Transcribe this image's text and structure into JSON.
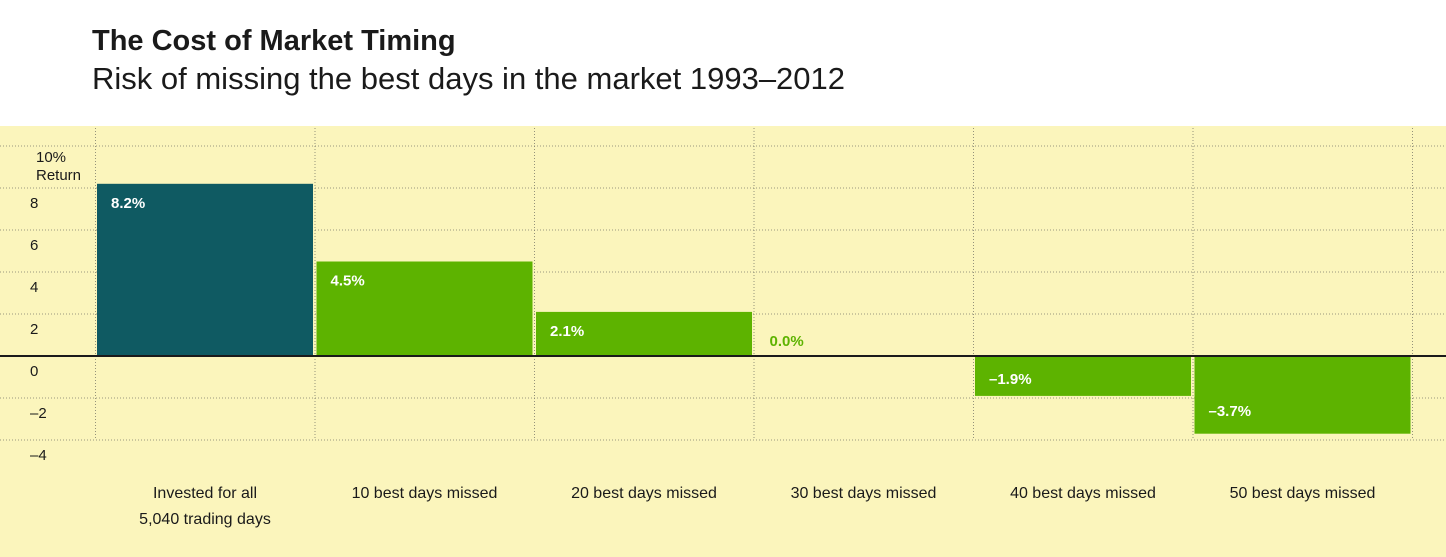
{
  "chart_data": {
    "type": "bar",
    "title": "The Cost of Market Timing",
    "subtitle": "Risk of missing the best days in the market 1993–2012",
    "ylabel": "Return",
    "ylim": [
      -4,
      10
    ],
    "y_ticks": [
      {
        "value": 10,
        "label": "10%"
      },
      {
        "value": 8,
        "label": "8"
      },
      {
        "value": 6,
        "label": "6"
      },
      {
        "value": 4,
        "label": "4"
      },
      {
        "value": 2,
        "label": "2"
      },
      {
        "value": 0,
        "label": "0"
      },
      {
        "value": -2,
        "label": "–2"
      },
      {
        "value": -4,
        "label": "–4"
      }
    ],
    "categories": [
      [
        "Invested for all",
        "5,040 trading days"
      ],
      [
        "10 best days missed"
      ],
      [
        "20 best days missed"
      ],
      [
        "30 best days missed"
      ],
      [
        "40 best days missed"
      ],
      [
        "50 best days missed"
      ]
    ],
    "values": [
      8.2,
      4.5,
      2.1,
      0.0,
      -1.9,
      -3.7
    ],
    "data_labels": [
      "8.2%",
      "4.5%",
      "2.1%",
      "0.0%",
      "–1.9%",
      "–3.7%"
    ],
    "colors": {
      "first_bar": "#0f5a62",
      "other_bars": "#5db300",
      "background": "#fbf5bc",
      "gridline": "#7a7a6a",
      "zero_line": "#1a1a1a",
      "data_label_on_bar": "#ffffff",
      "data_label_zero": "#5db300"
    },
    "grid": true
  }
}
